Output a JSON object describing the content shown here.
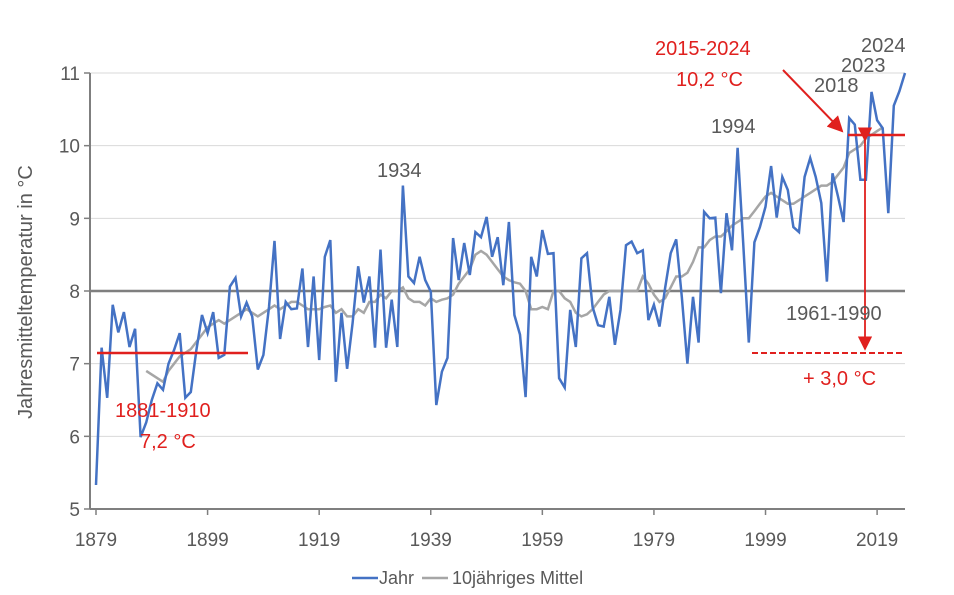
{
  "chart_data": {
    "type": "line",
    "title": "",
    "xlabel": "",
    "ylabel": "Jahresmitteltemperatur in °C",
    "xlim": [
      1879,
      2024
    ],
    "ylim": [
      5,
      11
    ],
    "x_ticks": [
      "1879",
      "1899",
      "1919",
      "1939",
      "1959",
      "1979",
      "1999",
      "2019"
    ],
    "y_ticks": [
      "5",
      "6",
      "7",
      "8",
      "9",
      "10",
      "11"
    ],
    "grid": "horizontal",
    "legend_position": "bottom",
    "colors": {
      "jahr": "#4472c4",
      "mittel": "#a6a6a6",
      "reference": "#7f7f7f",
      "annotation": "#e0201e"
    },
    "series": [
      {
        "name": "Jahr",
        "start_year": 1879,
        "values": [
          5.33,
          7.22,
          6.53,
          7.81,
          7.43,
          7.71,
          7.23,
          7.48,
          5.99,
          6.19,
          6.5,
          6.73,
          6.64,
          7.0,
          7.19,
          7.42,
          6.53,
          6.61,
          7.19,
          7.67,
          7.42,
          7.71,
          7.08,
          7.12,
          8.06,
          8.18,
          7.65,
          7.84,
          7.65,
          6.92,
          7.12,
          7.78,
          8.69,
          7.34,
          7.85,
          7.75,
          7.76,
          8.31,
          7.23,
          8.2,
          7.05,
          8.47,
          8.7,
          6.75,
          7.7,
          6.93,
          7.56,
          8.34,
          7.84,
          8.2,
          7.22,
          8.57,
          7.22,
          7.88,
          7.23,
          9.45,
          8.2,
          8.11,
          8.47,
          8.15,
          7.99,
          6.43,
          6.89,
          7.08,
          8.73,
          8.15,
          8.66,
          8.22,
          8.81,
          8.74,
          9.02,
          8.47,
          8.74,
          8.08,
          8.95,
          7.67,
          7.4,
          6.54,
          8.47,
          8.2,
          8.84,
          8.51,
          8.52,
          6.8,
          6.67,
          7.74,
          7.23,
          8.45,
          8.52,
          7.78,
          7.53,
          7.51,
          7.92,
          7.26,
          7.74,
          8.63,
          8.68,
          8.52,
          8.56,
          7.6,
          7.81,
          7.51,
          8.04,
          8.52,
          8.71,
          7.92,
          7.0,
          7.92,
          7.29,
          9.09,
          9.0,
          9.01,
          7.97,
          9.07,
          8.56,
          9.97,
          8.66,
          7.29,
          8.67,
          8.88,
          9.16,
          9.72,
          9.01,
          9.57,
          9.39,
          8.88,
          8.81,
          9.57,
          9.83,
          9.57,
          9.21,
          8.13,
          9.62,
          9.3,
          8.95,
          10.38,
          10.29,
          9.53,
          9.53,
          10.74,
          10.35,
          10.24,
          9.07,
          10.55,
          10.75,
          11.0
        ]
      },
      {
        "name": "10jähriges Mittel",
        "start_year": 1888,
        "values": [
          6.9,
          6.85,
          6.8,
          6.75,
          6.9,
          7.0,
          7.1,
          7.15,
          7.2,
          7.3,
          7.4,
          7.5,
          7.55,
          7.6,
          7.55,
          7.6,
          7.65,
          7.7,
          7.75,
          7.7,
          7.65,
          7.7,
          7.75,
          7.8,
          7.75,
          7.8,
          7.85,
          7.85,
          7.8,
          7.75,
          7.75,
          7.75,
          7.78,
          7.8,
          7.7,
          7.75,
          7.65,
          7.65,
          7.75,
          7.7,
          7.85,
          7.85,
          7.95,
          7.9,
          8.0,
          8.0,
          8.05,
          7.9,
          7.85,
          7.85,
          7.8,
          7.9,
          7.85,
          7.88,
          7.9,
          7.95,
          8.1,
          8.2,
          8.3,
          8.5,
          8.55,
          8.5,
          8.4,
          8.3,
          8.2,
          8.15,
          8.12,
          8.1,
          8.0,
          7.75,
          7.75,
          7.78,
          7.75,
          8.0,
          8.0,
          7.9,
          7.85,
          7.7,
          7.65,
          7.68,
          7.75,
          7.85,
          7.95,
          8.0,
          8.0,
          8.0,
          8.0,
          8.0,
          8.0,
          8.2,
          8.1,
          7.95,
          7.85,
          7.9,
          8.05,
          8.2,
          8.2,
          8.25,
          8.4,
          8.6,
          8.6,
          8.7,
          8.75,
          8.75,
          8.82,
          8.9,
          8.95,
          9.0,
          9.0,
          9.1,
          9.2,
          9.3,
          9.35,
          9.3,
          9.25,
          9.2,
          9.2,
          9.25,
          9.3,
          9.35,
          9.4,
          9.45,
          9.45,
          9.5,
          9.6,
          9.7,
          9.9,
          9.95,
          10.0,
          10.1,
          10.15,
          10.2,
          10.25
        ]
      }
    ],
    "reference_line": {
      "value": 8.0,
      "label": "1961-1990"
    },
    "annotations": {
      "period_1881": {
        "label": "1881-1910",
        "value_label": "7,2 °C",
        "value": 7.15,
        "from": 1879,
        "to": 1906
      },
      "period_2015": {
        "label": "2015-2024",
        "value_label": "10,2 °C",
        "value": 10.15
      },
      "difference": {
        "label": "+ 3,0 °C"
      },
      "year_labels": [
        "1934",
        "1994",
        "2018",
        "2023",
        "2024"
      ]
    }
  }
}
